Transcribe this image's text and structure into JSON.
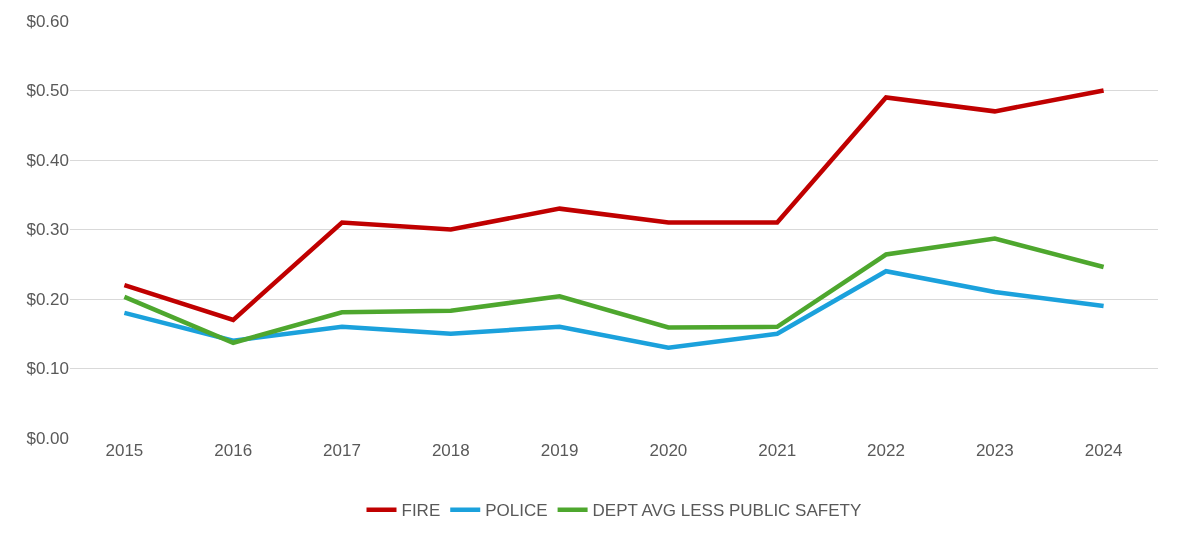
{
  "chart_data": {
    "type": "line",
    "categories": [
      "2015",
      "2016",
      "2017",
      "2018",
      "2019",
      "2020",
      "2021",
      "2022",
      "2023",
      "2024"
    ],
    "series": [
      {
        "name": "FIRE",
        "color": "#c00000",
        "values": [
          0.22,
          0.17,
          0.31,
          0.3,
          0.33,
          0.31,
          0.31,
          0.49,
          0.47,
          0.5
        ]
      },
      {
        "name": "POLICE",
        "color": "#1ba1dc",
        "values": [
          0.18,
          0.14,
          0.16,
          0.15,
          0.16,
          0.13,
          0.15,
          0.24,
          0.21,
          0.19
        ]
      },
      {
        "name": "DEPT AVG LESS PUBLIC SAFETY",
        "color": "#4ea72e",
        "values": [
          0.203,
          0.137,
          0.181,
          0.183,
          0.204,
          0.159,
          0.16,
          0.264,
          0.287,
          0.246
        ]
      }
    ],
    "ylim": [
      0,
      0.6
    ],
    "yticks": [
      {
        "value": 0,
        "label": "$0.00"
      },
      {
        "value": 0.1,
        "label": "$0.10"
      },
      {
        "value": 0.2,
        "label": "$0.20"
      },
      {
        "value": 0.3,
        "label": "$0.30"
      },
      {
        "value": 0.4,
        "label": "$0.40"
      },
      {
        "value": 0.5,
        "label": "$0.50"
      },
      {
        "value": 0.6,
        "label": "$0.60"
      }
    ],
    "grid": "y",
    "legend": "bottom",
    "marker": "none",
    "line_style": "solid"
  }
}
